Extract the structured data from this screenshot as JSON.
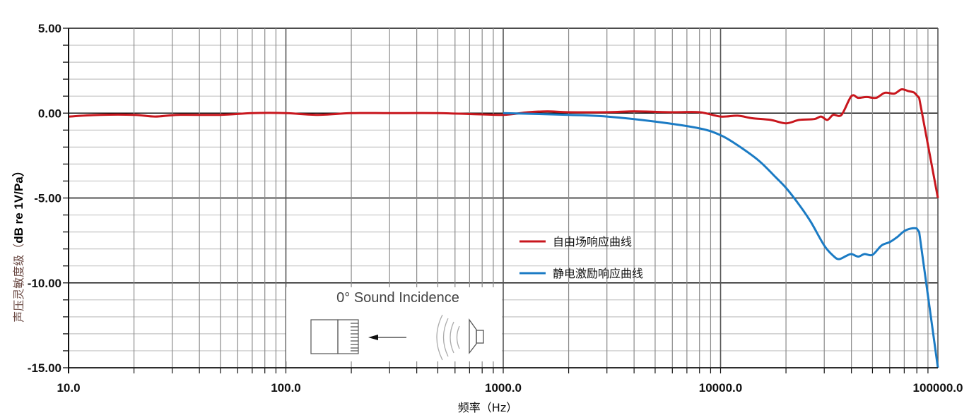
{
  "chart_data": {
    "type": "line",
    "title": "",
    "xlabel": "频率（Hz）",
    "ylabel_cn": "声压灵敏度级（",
    "ylabel_en": "dB re 1V/Pa）",
    "x_scale": "log",
    "xlim": [
      10,
      100000
    ],
    "ylim": [
      -15,
      5
    ],
    "grid": true,
    "x_ticks": [
      "10.0",
      "100.0",
      "1000.0",
      "10000.0",
      "100000.0"
    ],
    "y_ticks": [
      "5.00",
      "0.00",
      "-5.00",
      "-10.00",
      "-15.00"
    ],
    "legend_position": "center-right",
    "series": [
      {
        "name": "自由场响应曲线",
        "color": "#c8161d",
        "x": [
          10,
          14,
          20,
          25,
          32,
          50,
          70,
          100,
          140,
          200,
          300,
          500,
          700,
          1000,
          1300,
          1600,
          2000,
          3000,
          4000,
          6000,
          8000,
          10000,
          12000,
          14000,
          17000,
          20000,
          23000,
          27000,
          29000,
          31000,
          33000,
          36000,
          40000,
          43000,
          47000,
          52000,
          57000,
          63000,
          68000,
          73000,
          78000,
          82000,
          100000
        ],
        "y": [
          -0.2,
          -0.1,
          -0.1,
          -0.2,
          -0.1,
          -0.1,
          0.0,
          0.0,
          -0.1,
          0.0,
          0.0,
          0.0,
          -0.05,
          -0.1,
          0.05,
          0.1,
          0.05,
          0.05,
          0.1,
          0.05,
          0.05,
          -0.2,
          -0.15,
          -0.3,
          -0.4,
          -0.6,
          -0.4,
          -0.35,
          -0.2,
          -0.4,
          -0.1,
          -0.1,
          1.0,
          0.9,
          0.95,
          0.9,
          1.2,
          1.15,
          1.4,
          1.3,
          1.2,
          0.9,
          -5.0
        ]
      },
      {
        "name": "静电激励响应曲线",
        "color": "#1b7bc4",
        "x": [
          1000,
          2000,
          3000,
          5000,
          8000,
          10000,
          12000,
          15000,
          18000,
          20000,
          23000,
          26000,
          30000,
          33000,
          35000,
          38000,
          40000,
          43000,
          46000,
          50000,
          55000,
          60000,
          65000,
          70000,
          75000,
          80000,
          82000,
          100000
        ],
        "y": [
          0.0,
          -0.1,
          -0.2,
          -0.5,
          -0.9,
          -1.3,
          -1.9,
          -2.8,
          -3.8,
          -4.4,
          -5.4,
          -6.4,
          -7.8,
          -8.4,
          -8.6,
          -8.4,
          -8.3,
          -8.45,
          -8.3,
          -8.35,
          -7.8,
          -7.6,
          -7.3,
          -6.95,
          -6.8,
          -6.8,
          -7.0,
          -15.0
        ]
      }
    ]
  },
  "inset": {
    "title": "0° Sound Incidence"
  }
}
